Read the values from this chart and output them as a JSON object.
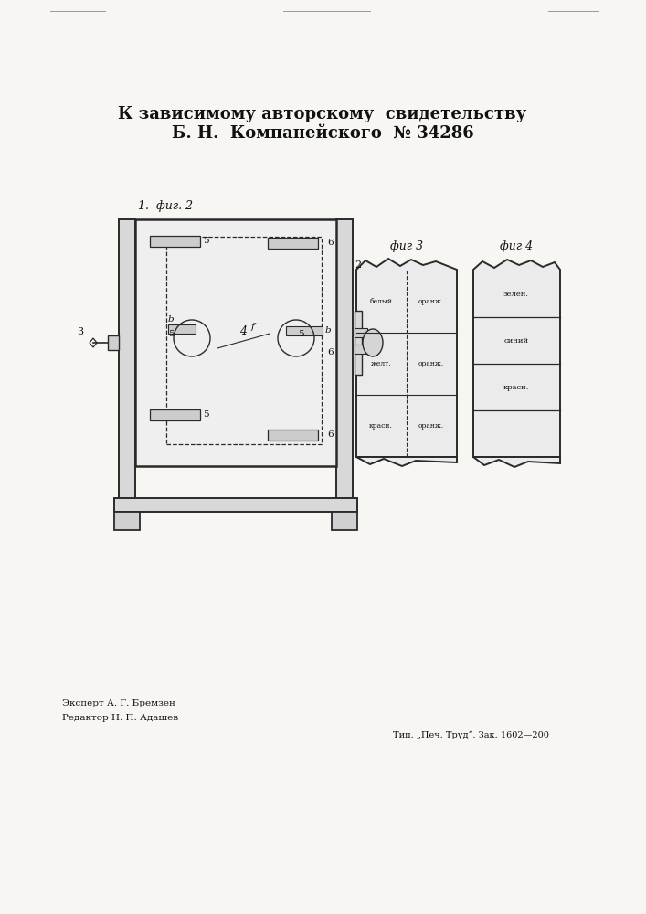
{
  "bg_color": "#f7f6f2",
  "title_line1": "К зависимому авторскому  свидетельству",
  "title_line2": "Б. Н.  Компанейского  № 34286",
  "expert_text": "Эксперт А. Г. Бремзен",
  "editor_text": "Редактор Н. П. Адашев",
  "publisher_text": "Тип. „Печ. Труд“. Зак. 1602—200",
  "fig2_label": "фиг. 2",
  "fig3_label": "фиг 3",
  "fig4_label": "фиг 4",
  "line_color": "#2a2a2a",
  "text_color": "#111111",
  "fig3_labels": [
    [
      "красн.",
      "оранж."
    ],
    [
      "желт.",
      "оранж."
    ],
    [
      "белый",
      "оранж."
    ]
  ],
  "fig4_labels": [
    "красн.",
    "синий",
    "зелен."
  ],
  "label1": "1.",
  "label2": "2",
  "label3": "3",
  "label4": "4",
  "label5": "5",
  "label6a": "6",
  "label6b": "6",
  "label6c": "6",
  "labelb1": "b",
  "labelb2": "b",
  "labelf": "f"
}
